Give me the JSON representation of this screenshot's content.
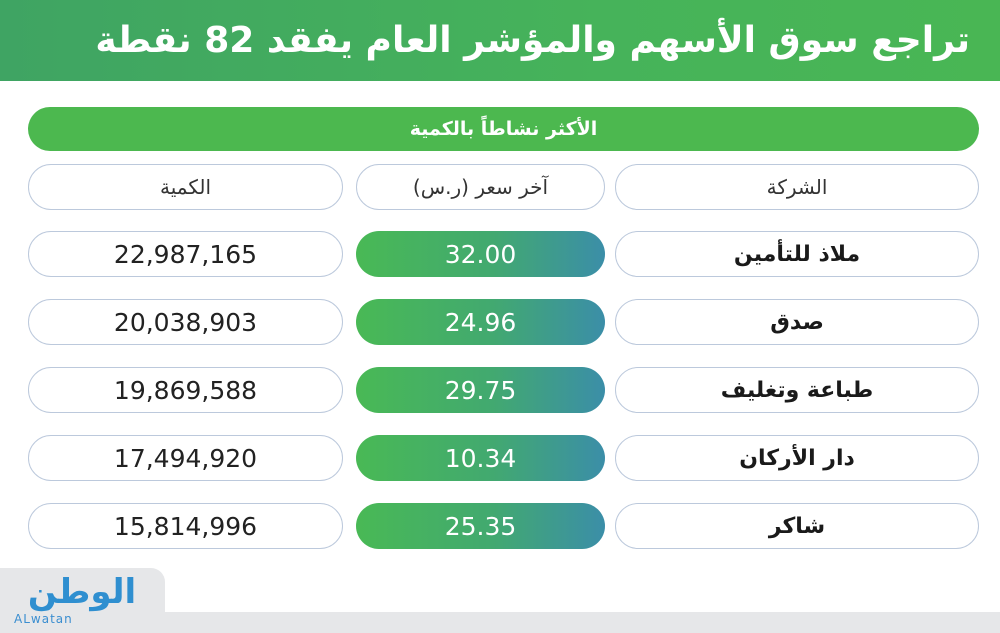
{
  "header": {
    "title": "تراجع سوق الأسهم والمؤشر العام يفقد 82 نقطة"
  },
  "banner": {
    "label": "الأكثر نشاطاً بالكمية"
  },
  "columns": {
    "company": "الشركة",
    "last_price": "آخر سعر (ر.س)",
    "quantity": "الكمية"
  },
  "rows": [
    {
      "company": "ملاذ للتأمين",
      "price": "32.00",
      "quantity": "22,987,165"
    },
    {
      "company": "صدق",
      "price": "24.96",
      "quantity": "20,038,903"
    },
    {
      "company": "طباعة وتغليف",
      "price": "29.75",
      "quantity": "19,869,588"
    },
    {
      "company": "دار الأركان",
      "price": "10.34",
      "quantity": "17,494,920"
    },
    {
      "company": "شاكر",
      "price": "25.35",
      "quantity": "15,814,996"
    }
  ],
  "logo": {
    "arabic": "الوطن",
    "english": "ALwatan"
  },
  "colors": {
    "accent_green": "#4cb84f",
    "accent_blue": "#3b8ea8",
    "pill_border": "#bcc9dc"
  }
}
